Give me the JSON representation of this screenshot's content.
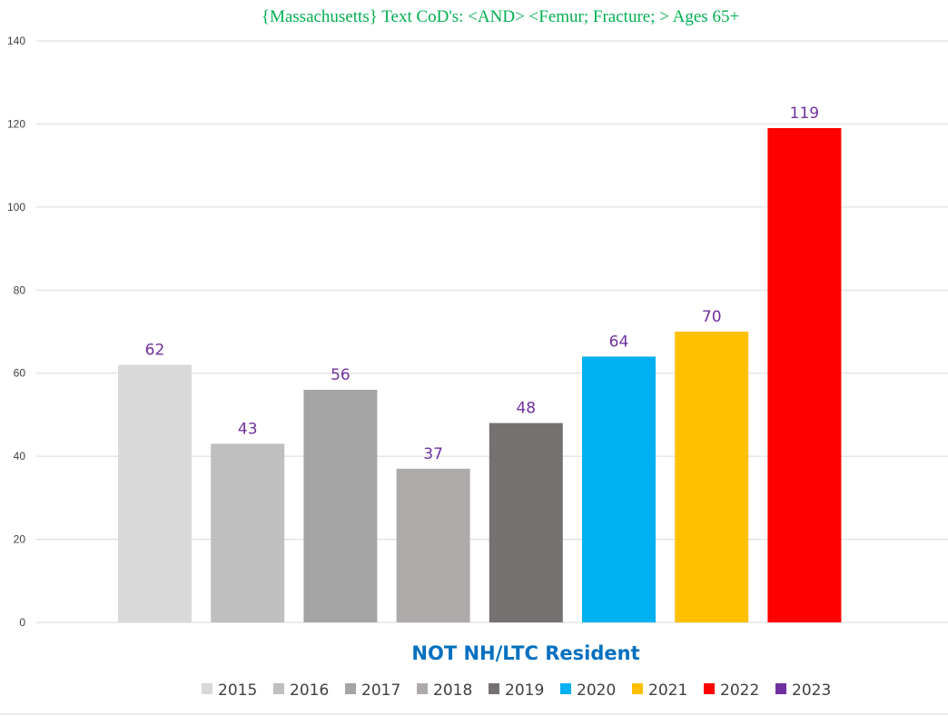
{
  "chart_data": {
    "type": "bar",
    "title": "{Massachusetts}   Text CoD's: <AND> <Femur; Fracture; > Ages 65+",
    "xlabel": "NOT NH/LTC Resident",
    "ylabel": "",
    "ylim": [
      0,
      140
    ],
    "yticks": [
      0,
      20,
      40,
      60,
      80,
      100,
      120,
      140
    ],
    "grid": true,
    "legend_position": "bottom",
    "series": [
      {
        "name": "2015",
        "value": 62,
        "color": "#d9d9d9"
      },
      {
        "name": "2016",
        "value": 43,
        "color": "#bfbfbf"
      },
      {
        "name": "2017",
        "value": 56,
        "color": "#a5a5a5"
      },
      {
        "name": "2018",
        "value": 37,
        "color": "#aeaaaa"
      },
      {
        "name": "2019",
        "value": 48,
        "color": "#767171"
      },
      {
        "name": "2020",
        "value": 64,
        "color": "#00b0f0"
      },
      {
        "name": "2021",
        "value": 70,
        "color": "#ffc000"
      },
      {
        "name": "2022",
        "value": 119,
        "color": "#ff0000"
      },
      {
        "name": "2023",
        "value": null,
        "color": "#7030a0"
      }
    ]
  }
}
